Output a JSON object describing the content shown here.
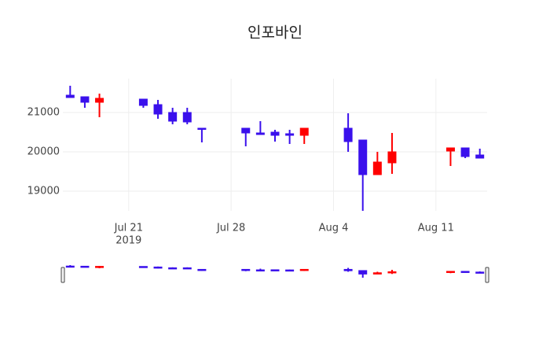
{
  "chart_data": {
    "type": "candlestick",
    "title": "인포바인",
    "x": [
      "2019-07-17",
      "2019-07-18",
      "2019-07-19",
      "2019-07-22",
      "2019-07-23",
      "2019-07-24",
      "2019-07-25",
      "2019-07-26",
      "2019-07-29",
      "2019-07-30",
      "2019-07-31",
      "2019-08-01",
      "2019-08-02",
      "2019-08-05",
      "2019-08-06",
      "2019-08-07",
      "2019-08-08",
      "2019-08-12",
      "2019-08-13",
      "2019-08-14"
    ],
    "open": [
      21440,
      21400,
      21260,
      21340,
      21200,
      21000,
      21000,
      20600,
      20600,
      20480,
      20500,
      20460,
      20420,
      20600,
      20300,
      19420,
      19720,
      20020,
      20100,
      19920
    ],
    "high": [
      21680,
      21400,
      21480,
      21340,
      21320,
      21120,
      21120,
      20600,
      20600,
      20780,
      20560,
      20560,
      20600,
      20980,
      20300,
      20000,
      20480,
      20100,
      20100,
      20080
    ],
    "low": [
      21380,
      21120,
      20880,
      21120,
      20840,
      20700,
      20700,
      20240,
      20140,
      20440,
      20260,
      20200,
      20200,
      20000,
      18500,
      19420,
      19440,
      19640,
      19840,
      19840
    ],
    "close": [
      21380,
      21260,
      21360,
      21180,
      20960,
      20780,
      20760,
      20580,
      20480,
      20440,
      20420,
      20420,
      20600,
      20260,
      19420,
      19740,
      20000,
      20100,
      19880,
      19840
    ],
    "increasing_color": "#ff0000",
    "decreasing_color": "#3a10ec",
    "xlim": [
      "2019-07-16T12:00",
      "2019-08-14T12:00"
    ],
    "xticks": [
      {
        "value": "2019-07-21",
        "label": "Jul 21"
      },
      {
        "value": "2019-07-28",
        "label": "Jul 28"
      },
      {
        "value": "2019-08-04",
        "label": "Aug 4"
      },
      {
        "value": "2019-08-11",
        "label": "Aug 11"
      }
    ],
    "x_year": "2019",
    "ylim": [
      18500,
      21860
    ],
    "yticks": [
      19000,
      20000,
      21000
    ],
    "grid": true,
    "rangeslider": true
  }
}
